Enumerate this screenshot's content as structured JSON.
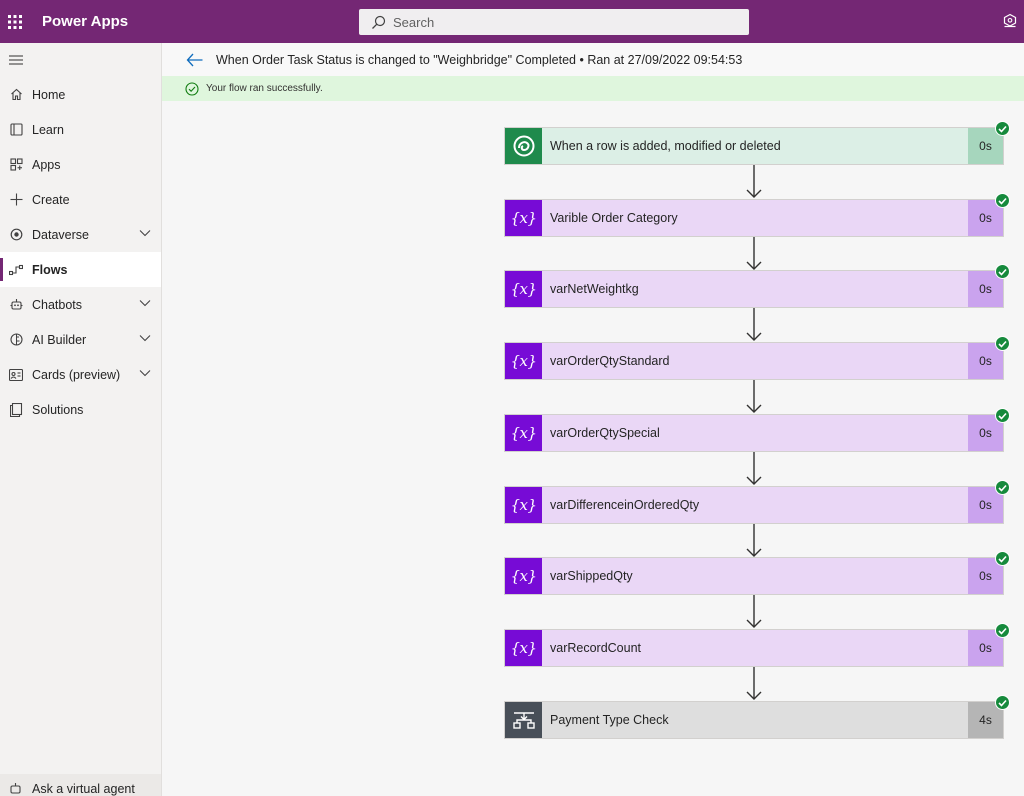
{
  "topbar": {
    "app_title": "Power Apps",
    "search_placeholder": "Search",
    "brand_color": "#742774"
  },
  "sidebar": {
    "items": [
      {
        "label": "Home",
        "icon": "home-icon",
        "expandable": false,
        "active": false
      },
      {
        "label": "Learn",
        "icon": "book-icon",
        "expandable": false,
        "active": false
      },
      {
        "label": "Apps",
        "icon": "apps-icon",
        "expandable": false,
        "active": false
      },
      {
        "label": "Create",
        "icon": "plus-icon",
        "expandable": false,
        "active": false
      },
      {
        "label": "Dataverse",
        "icon": "dataverse-icon",
        "expandable": true,
        "active": false
      },
      {
        "label": "Flows",
        "icon": "flow-icon",
        "expandable": false,
        "active": true
      },
      {
        "label": "Chatbots",
        "icon": "bot-icon",
        "expandable": true,
        "active": false
      },
      {
        "label": "AI Builder",
        "icon": "ai-builder-icon",
        "expandable": true,
        "active": false
      },
      {
        "label": "Cards (preview)",
        "icon": "card-icon",
        "expandable": true,
        "active": false
      },
      {
        "label": "Solutions",
        "icon": "solutions-icon",
        "expandable": false,
        "active": false
      }
    ],
    "virtual_agent_label": "Ask a virtual agent"
  },
  "header": {
    "title": "When Order Task Status is changed to \"Weighbridge\" Completed • Ran at 27/09/2022 09:54:53"
  },
  "banner": {
    "message": "Your flow ran successfully.",
    "color": "#dff6dd"
  },
  "flow": {
    "steps": [
      {
        "label": "When a row is added, modified or deleted",
        "duration": "0s",
        "kind": "dataverse-trigger",
        "status": "succeeded"
      },
      {
        "label": "Varible Order Category",
        "duration": "0s",
        "kind": "variable",
        "status": "succeeded"
      },
      {
        "label": "varNetWeightkg",
        "duration": "0s",
        "kind": "variable",
        "status": "succeeded"
      },
      {
        "label": "varOrderQtyStandard",
        "duration": "0s",
        "kind": "variable",
        "status": "succeeded"
      },
      {
        "label": "varOrderQtySpecial",
        "duration": "0s",
        "kind": "variable",
        "status": "succeeded"
      },
      {
        "label": "varDifferenceinOrderedQty",
        "duration": "0s",
        "kind": "variable",
        "status": "succeeded"
      },
      {
        "label": "varShippedQty",
        "duration": "0s",
        "kind": "variable",
        "status": "succeeded"
      },
      {
        "label": "varRecordCount",
        "duration": "0s",
        "kind": "variable",
        "status": "succeeded"
      },
      {
        "label": "Payment Type Check",
        "duration": "4s",
        "kind": "condition",
        "status": "succeeded"
      }
    ]
  }
}
